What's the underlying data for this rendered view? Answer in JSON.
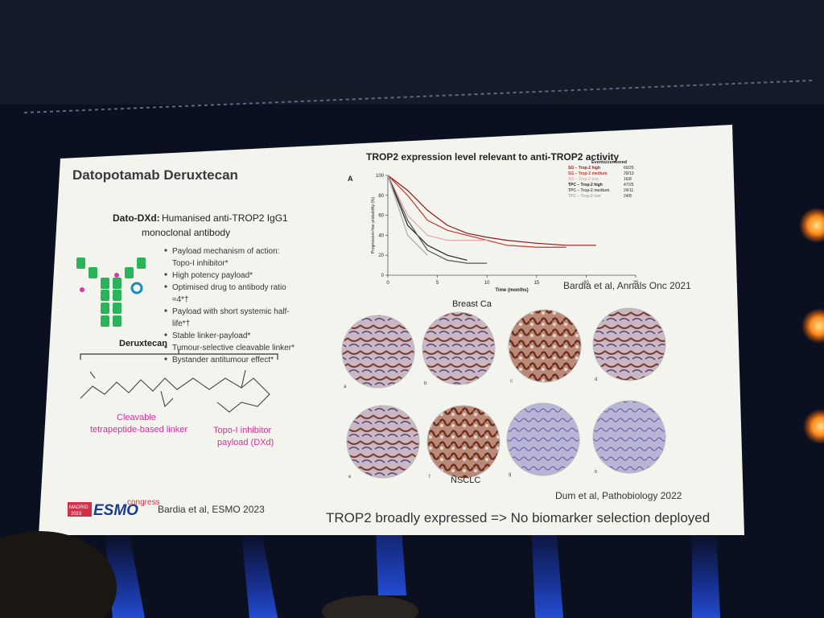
{
  "slide": {
    "title": "Datopotamab Deruxtecan",
    "description": {
      "label": "Dato-DXd:",
      "lines": [
        "Humanised anti-TROP2 IgG1",
        "monoclonal antibody"
      ]
    },
    "bullets": [
      [
        "Payload mechanism of action:",
        "Topo-I inhibitor*"
      ],
      [
        "High potency payload*"
      ],
      [
        "Optimised drug to antibody ratio",
        "≈4*†"
      ],
      [
        "Payload with short systemic half-",
        "life*†"
      ],
      [
        "Stable linker-payload*"
      ],
      [
        "Tumour-selective cleavable linker*"
      ],
      [
        "Bystander antitumour effect*"
      ]
    ],
    "molecule_label": "Deruxtecan",
    "linker_label": [
      "Cleavable",
      "tetrapeptide-based linker"
    ],
    "payload_label": [
      "Topo-I inhibitor",
      "payload (DXd)"
    ],
    "logo": {
      "city": "MADRID",
      "year": "2023",
      "name": "ESMO",
      "suffix": "congress"
    },
    "left_reference": "Bardia et al, ESMO 2023",
    "right_title": "TROP2 expression level relevant to anti-TROP2 activity",
    "panel_letter": "A",
    "km_chart": {
      "type": "line",
      "x_label": "Time (months)",
      "y_label": "Progression-free probability (%)",
      "legend_header": "Events/censored",
      "x": [
        0,
        2,
        4,
        6,
        8,
        10,
        12,
        15,
        18,
        21
      ],
      "xlim": [
        0,
        25
      ],
      "xticks": [
        0,
        5,
        10,
        15,
        20,
        25
      ],
      "ylim": [
        0,
        100
      ],
      "yticks": [
        0,
        20,
        40,
        60,
        80,
        100
      ],
      "series": [
        {
          "name": "SG – Trop-2 high",
          "events": "60/25",
          "color": "#8b1a1a",
          "values": [
            100,
            85,
            65,
            50,
            42,
            38,
            35,
            32,
            30,
            30
          ]
        },
        {
          "name": "SG – Trop-2 medium",
          "events": "29/13",
          "color": "#c0392b",
          "values": [
            100,
            80,
            55,
            45,
            40,
            35,
            30,
            28,
            28,
            null
          ]
        },
        {
          "name": "SG – Trop-2 low",
          "events": "16/8",
          "color": "#e8a8a8",
          "values": [
            100,
            60,
            40,
            35,
            35,
            35,
            null,
            null,
            null,
            null
          ]
        },
        {
          "name": "TPC – Trop-2 high",
          "events": "47/25",
          "color": "#222222",
          "values": [
            100,
            50,
            30,
            20,
            15,
            null,
            null,
            null,
            null,
            null
          ]
        },
        {
          "name": "TPC – Trop-2 medium",
          "events": "24/11",
          "color": "#555555",
          "values": [
            100,
            55,
            25,
            15,
            12,
            12,
            null,
            null,
            null,
            null
          ]
        },
        {
          "name": "TPC – Trop-2 low",
          "events": "24/8",
          "color": "#aaaaaa",
          "values": [
            100,
            40,
            20,
            null,
            null,
            null,
            null,
            null,
            null,
            null
          ]
        }
      ]
    },
    "km_reference": "Bardia et al, Annals Onc 2021",
    "group_labels": [
      "Breast Ca",
      "NSCLC"
    ],
    "image_letters": [
      "a",
      "b",
      "c",
      "d",
      "e",
      "f",
      "g",
      "h"
    ],
    "ihc_reference": "Dum et al, Pathobiology 2022",
    "conclusion": "TROP2 broadly expressed => No biomarker selection deployed"
  }
}
